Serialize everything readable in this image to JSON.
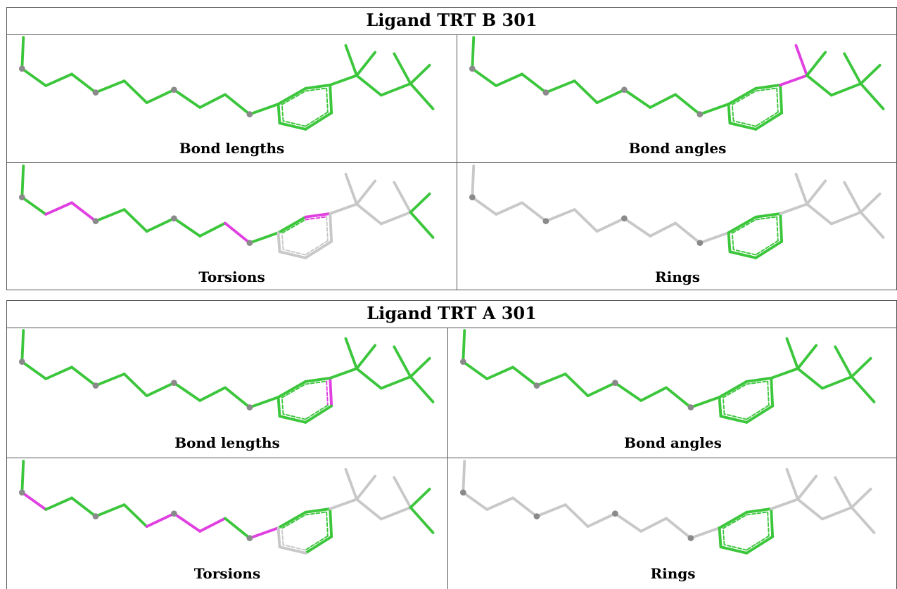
{
  "tables": [
    {
      "title": "Ligand TRT B 301",
      "panels": [
        {
          "caption": "Bond lengths",
          "highlight": [],
          "ring_highlight": "none",
          "gray_out": []
        },
        {
          "caption": "Bond angles",
          "highlight": [
            17,
            18
          ],
          "ring_highlight": "none",
          "gray_out": []
        },
        {
          "caption": "Torsions",
          "highlight": [
            2,
            3,
            9,
            12
          ],
          "ring_highlight": "gray",
          "gray_out": [
            13,
            14,
            15,
            16,
            17,
            18,
            19,
            20,
            21,
            22
          ]
        },
        {
          "caption": "Rings",
          "highlight": [],
          "ring_highlight": "green",
          "gray_out": "all"
        }
      ]
    },
    {
      "title": "Ligand TRT A 301",
      "panels": [
        {
          "caption": "Bond lengths",
          "highlight": [
            13
          ],
          "ring_highlight": "none",
          "gray_out": []
        },
        {
          "caption": "Bond angles",
          "highlight": [],
          "ring_highlight": "none",
          "gray_out": []
        },
        {
          "caption": "Torsions",
          "highlight": [
            1,
            6,
            7,
            8,
            10
          ],
          "ring_highlight": "gray",
          "gray_out": [
            15,
            16,
            17,
            18,
            19,
            20,
            21,
            22
          ]
        },
        {
          "caption": "Rings",
          "highlight": [],
          "ring_highlight": "green",
          "gray_out": "all"
        }
      ]
    }
  ],
  "colors": {
    "bond": "#3cc63c",
    "highlight": "#e040e0",
    "muted": "#c8c8c8",
    "atom": "#8a8a8a"
  }
}
